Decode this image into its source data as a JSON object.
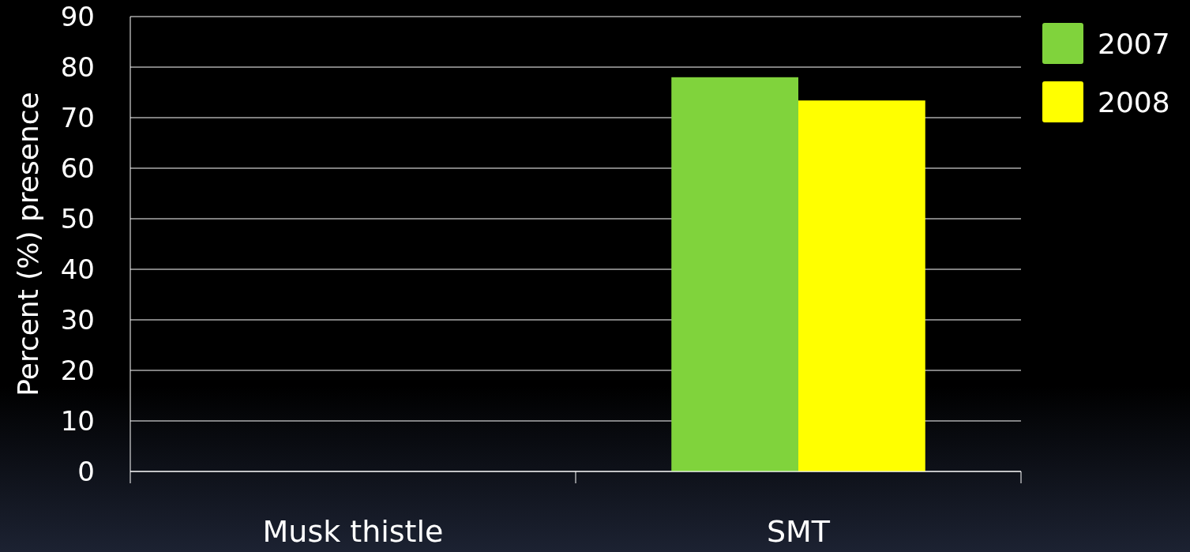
{
  "chart_data": {
    "type": "bar",
    "ylabel": "Percent (%) presence",
    "categories": [
      "Musk thistle",
      "SMT"
    ],
    "series": [
      {
        "name": "2007",
        "color": "#80d33c",
        "values": [
          0,
          78
        ]
      },
      {
        "name": "2008",
        "color": "#ffff00",
        "values": [
          0,
          73.4
        ]
      }
    ],
    "ylim": [
      0,
      90
    ],
    "yticks": [
      0,
      10,
      20,
      30,
      40,
      50,
      60,
      70,
      80,
      90
    ],
    "grid": "y",
    "legend": "top right"
  }
}
